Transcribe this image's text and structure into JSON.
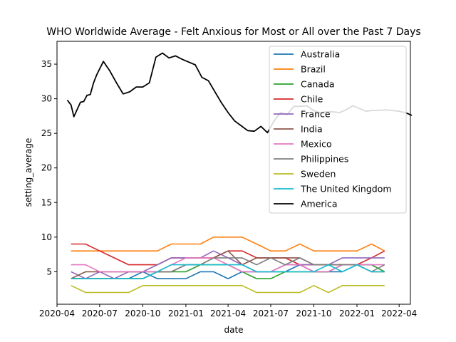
{
  "chart_data": {
    "type": "line",
    "title": "WHO Worldwide Average - Felt Anxious for Most or All over the Past 7 Days",
    "xlabel": "date",
    "ylabel": "setting_average",
    "x_ticks": [
      "2020-04",
      "2020-07",
      "2020-10",
      "2021-01",
      "2021-04",
      "2021-07",
      "2021-10",
      "2022-01",
      "2022-04"
    ],
    "y_ticks": [
      5,
      10,
      15,
      20,
      25,
      30,
      35
    ],
    "xlim": [
      "2020-04-01",
      "2022-04-25"
    ],
    "ylim": [
      0.3,
      38.3
    ],
    "legend_position": "upper-right",
    "grid": false,
    "series": [
      {
        "name": "Australia",
        "color": "#1f77b4",
        "x": [
          "2020-05-01",
          "2020-06-01",
          "2020-07-01",
          "2020-08-01",
          "2020-09-01",
          "2020-10-01",
          "2020-11-01",
          "2020-12-01",
          "2021-01-01",
          "2021-02-01",
          "2021-03-01",
          "2021-04-01",
          "2021-05-01",
          "2021-06-01",
          "2021-07-01",
          "2021-08-01",
          "2021-09-01",
          "2021-10-01",
          "2021-11-01",
          "2021-12-01",
          "2022-01-01",
          "2022-02-01",
          "2022-03-01"
        ],
        "y": [
          4,
          4,
          4,
          4,
          4,
          5,
          4,
          4,
          4,
          5,
          5,
          4,
          5,
          5,
          5,
          5,
          6,
          5,
          5,
          5,
          6,
          6,
          5
        ]
      },
      {
        "name": "Brazil",
        "color": "#ff7f0e",
        "x": [
          "2020-05-01",
          "2020-06-01",
          "2020-07-01",
          "2020-08-01",
          "2020-09-01",
          "2020-10-01",
          "2020-11-01",
          "2020-12-01",
          "2021-01-01",
          "2021-02-01",
          "2021-03-01",
          "2021-04-01",
          "2021-05-01",
          "2021-06-01",
          "2021-07-01",
          "2021-08-01",
          "2021-09-01",
          "2021-10-01",
          "2021-11-01",
          "2021-12-01",
          "2022-01-01",
          "2022-02-01",
          "2022-03-01"
        ],
        "y": [
          8,
          8,
          8,
          8,
          8,
          8,
          8,
          9,
          9,
          9,
          10,
          10,
          10,
          9,
          8,
          8,
          9,
          8,
          8,
          8,
          8,
          9,
          8
        ]
      },
      {
        "name": "Canada",
        "color": "#2ca02c",
        "x": [
          "2020-05-01",
          "2020-06-01",
          "2020-07-01",
          "2020-08-01",
          "2020-09-01",
          "2020-10-01",
          "2020-11-01",
          "2020-12-01",
          "2021-01-01",
          "2021-02-01",
          "2021-03-01",
          "2021-04-01",
          "2021-05-01",
          "2021-06-01",
          "2021-07-01",
          "2021-08-01",
          "2021-09-01",
          "2021-10-01",
          "2021-11-01",
          "2021-12-01",
          "2022-01-01",
          "2022-02-01",
          "2022-03-01"
        ],
        "y": [
          4,
          4,
          4,
          4,
          4,
          4,
          5,
          5,
          5,
          6,
          6,
          6,
          5,
          4,
          4,
          5,
          5,
          5,
          5,
          6,
          6,
          6,
          5
        ]
      },
      {
        "name": "Chile",
        "color": "#d62728",
        "x": [
          "2020-05-01",
          "2020-06-01",
          "2020-07-01",
          "2020-08-01",
          "2020-09-01",
          "2020-10-01",
          "2020-11-01",
          "2020-12-01",
          "2021-01-01",
          "2021-02-01",
          "2021-03-01",
          "2021-04-01",
          "2021-05-01",
          "2021-06-01",
          "2021-07-01",
          "2021-08-01",
          "2021-09-01",
          "2021-10-01",
          "2021-11-01",
          "2021-12-01",
          "2022-01-01",
          "2022-02-01",
          "2022-03-01"
        ],
        "y": [
          9,
          9,
          8,
          7,
          6,
          6,
          6,
          7,
          7,
          7,
          7,
          8,
          8,
          7,
          7,
          7,
          6,
          6,
          6,
          6,
          6,
          7,
          8
        ]
      },
      {
        "name": "France",
        "color": "#9467bd",
        "x": [
          "2020-05-01",
          "2020-06-01",
          "2020-07-01",
          "2020-08-01",
          "2020-09-01",
          "2020-10-01",
          "2020-11-01",
          "2020-12-01",
          "2021-01-01",
          "2021-02-01",
          "2021-03-01",
          "2021-04-01",
          "2021-05-01",
          "2021-06-01",
          "2021-07-01",
          "2021-08-01",
          "2021-09-01",
          "2021-10-01",
          "2021-11-01",
          "2021-12-01",
          "2022-01-01",
          "2022-02-01",
          "2022-03-01"
        ],
        "y": [
          5,
          4,
          5,
          4,
          5,
          5,
          6,
          7,
          7,
          7,
          8,
          7,
          6,
          5,
          5,
          6,
          6,
          6,
          6,
          7,
          7,
          7,
          7
        ]
      },
      {
        "name": "India",
        "color": "#8c564b",
        "x": [
          "2020-05-01",
          "2020-06-01",
          "2020-07-01",
          "2020-08-01",
          "2020-09-01",
          "2020-10-01",
          "2020-11-01",
          "2020-12-01",
          "2021-01-01",
          "2021-02-01",
          "2021-03-01",
          "2021-04-01",
          "2021-05-01",
          "2021-06-01",
          "2021-07-01",
          "2021-08-01",
          "2021-09-01",
          "2021-10-01",
          "2021-11-01",
          "2021-12-01",
          "2022-01-01",
          "2022-02-01",
          "2022-03-01"
        ],
        "y": [
          4,
          5,
          5,
          5,
          5,
          5,
          5,
          5,
          6,
          6,
          7,
          8,
          6,
          7,
          7,
          7,
          7,
          6,
          6,
          6,
          6,
          5,
          5
        ]
      },
      {
        "name": "Mexico",
        "color": "#e377c2",
        "x": [
          "2020-05-01",
          "2020-06-01",
          "2020-07-01",
          "2020-08-01",
          "2020-09-01",
          "2020-10-01",
          "2020-11-01",
          "2020-12-01",
          "2021-01-01",
          "2021-02-01",
          "2021-03-01",
          "2021-04-01",
          "2021-05-01",
          "2021-06-01",
          "2021-07-01",
          "2021-08-01",
          "2021-09-01",
          "2021-10-01",
          "2021-11-01",
          "2021-12-01",
          "2022-01-01",
          "2022-02-01",
          "2022-03-01"
        ],
        "y": [
          6,
          6,
          5,
          5,
          5,
          5,
          5,
          6,
          7,
          7,
          7,
          6,
          5,
          5,
          5,
          6,
          6,
          5,
          5,
          6,
          6,
          6,
          6
        ]
      },
      {
        "name": "Philippines",
        "color": "#7f7f7f",
        "x": [
          "2020-05-01",
          "2020-06-01",
          "2020-07-01",
          "2020-08-01",
          "2020-09-01",
          "2020-10-01",
          "2020-11-01",
          "2020-12-01",
          "2021-01-01",
          "2021-02-01",
          "2021-03-01",
          "2021-04-01",
          "2021-05-01",
          "2021-06-01",
          "2021-07-01",
          "2021-08-01",
          "2021-09-01",
          "2021-10-01",
          "2021-11-01",
          "2021-12-01",
          "2022-01-01",
          "2022-02-01",
          "2022-03-01"
        ],
        "y": [
          4,
          4,
          4,
          4,
          4,
          4,
          5,
          5,
          6,
          6,
          7,
          7,
          7,
          6,
          7,
          6,
          7,
          6,
          6,
          6,
          6,
          5,
          6
        ]
      },
      {
        "name": "Sweden",
        "color": "#bcbd22",
        "x": [
          "2020-05-01",
          "2020-06-01",
          "2020-07-01",
          "2020-08-01",
          "2020-09-01",
          "2020-10-01",
          "2020-11-01",
          "2020-12-01",
          "2021-01-01",
          "2021-02-01",
          "2021-03-01",
          "2021-04-01",
          "2021-05-01",
          "2021-06-01",
          "2021-07-01",
          "2021-08-01",
          "2021-09-01",
          "2021-10-01",
          "2021-11-01",
          "2021-12-01",
          "2022-01-01",
          "2022-02-01",
          "2022-03-01"
        ],
        "y": [
          3,
          2,
          2,
          2,
          2,
          3,
          3,
          3,
          3,
          3,
          3,
          3,
          3,
          2,
          2,
          2,
          2,
          3,
          2,
          3,
          3,
          3,
          3
        ]
      },
      {
        "name": "The United Kingdom",
        "color": "#17becf",
        "x": [
          "2020-05-01",
          "2020-06-01",
          "2020-07-01",
          "2020-08-01",
          "2020-09-01",
          "2020-10-01",
          "2020-11-01",
          "2020-12-01",
          "2021-01-01",
          "2021-02-01",
          "2021-03-01",
          "2021-04-01",
          "2021-05-01",
          "2021-06-01",
          "2021-07-01",
          "2021-08-01",
          "2021-09-01",
          "2021-10-01",
          "2021-11-01",
          "2021-12-01",
          "2022-01-01",
          "2022-02-01",
          "2022-03-01"
        ],
        "y": [
          4,
          4,
          4,
          4,
          4,
          4,
          5,
          6,
          6,
          6,
          6,
          6,
          6,
          5,
          5,
          5,
          5,
          5,
          6,
          5,
          6,
          5,
          5
        ]
      },
      {
        "name": "America",
        "color": "#000000",
        "x": [
          "2020-04-23",
          "2020-05-01",
          "2020-05-07",
          "2020-05-21",
          "2020-05-28",
          "2020-06-04",
          "2020-06-11",
          "2020-06-18",
          "2020-06-25",
          "2020-07-09",
          "2020-07-23",
          "2020-08-06",
          "2020-08-20",
          "2020-09-03",
          "2020-09-17",
          "2020-10-01",
          "2020-10-15",
          "2020-10-29",
          "2020-11-12",
          "2020-11-26",
          "2020-12-10",
          "2020-12-24",
          "2021-01-07",
          "2021-01-21",
          "2021-02-04",
          "2021-02-18",
          "2021-03-04",
          "2021-03-18",
          "2021-04-01",
          "2021-04-15",
          "2021-04-29",
          "2021-05-13",
          "2021-05-27",
          "2021-06-10",
          "2021-06-24",
          "2021-07-08",
          "2021-07-22",
          "2021-08-05",
          "2021-08-19",
          "2021-09-02",
          "2021-09-16",
          "2021-09-30",
          "2021-10-14",
          "2021-10-28",
          "2021-11-11",
          "2021-11-25",
          "2021-12-09",
          "2021-12-23",
          "2022-01-06",
          "2022-01-20",
          "2022-02-03",
          "2022-02-17",
          "2022-03-03",
          "2022-03-17",
          "2022-03-31",
          "2022-04-14",
          "2022-04-28"
        ],
        "y": [
          29.8,
          29.1,
          27.4,
          29.5,
          29.6,
          30.5,
          30.6,
          32.3,
          33.5,
          35.4,
          34.0,
          32.3,
          30.7,
          31.0,
          31.7,
          31.7,
          32.3,
          36.0,
          36.6,
          35.9,
          36.2,
          35.7,
          35.3,
          34.9,
          33.1,
          32.6,
          31.0,
          29.4,
          28.0,
          26.8,
          26.1,
          25.4,
          25.3,
          26.0,
          25.1,
          26.8,
          28.0,
          27.7,
          28.9,
          28.9,
          29.0,
          28.3,
          28.0,
          28.1,
          28.1,
          28.0,
          28.4,
          29.0,
          28.6,
          28.2,
          28.3,
          28.3,
          28.4,
          28.3,
          28.2,
          28.0,
          27.6
        ]
      }
    ]
  }
}
